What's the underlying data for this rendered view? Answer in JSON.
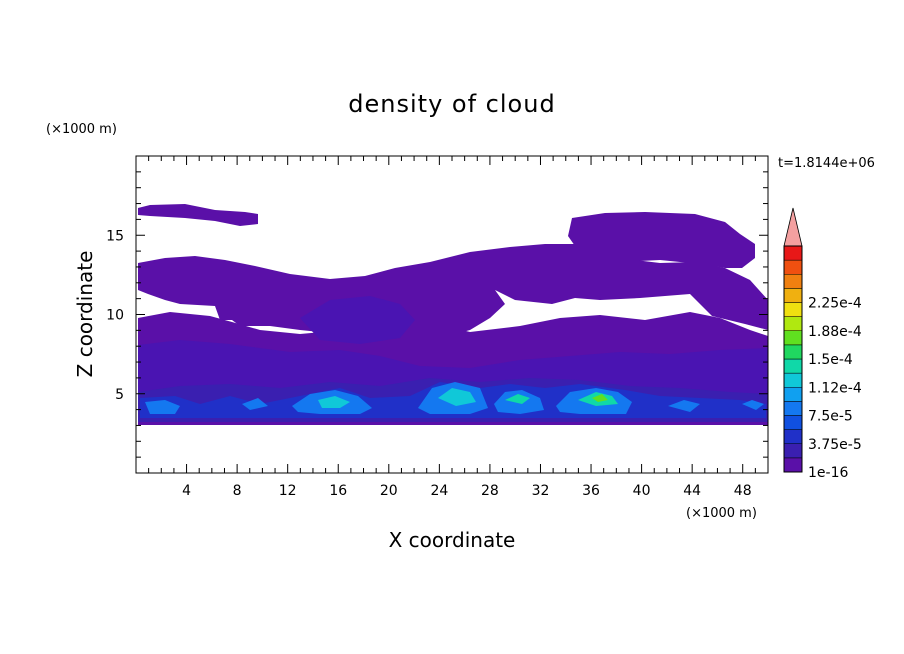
{
  "chart_data": {
    "type": "heatmap",
    "title": "density of cloud",
    "xlabel": "X coordinate",
    "ylabel": "Z coordinate",
    "x_unit": "(×1000 m)",
    "y_unit": "(×1000 m)",
    "time_label": "t=1.8144e+06",
    "xlim": [
      0,
      50
    ],
    "ylim": [
      0,
      20
    ],
    "x_ticks": [
      4,
      8,
      12,
      16,
      20,
      24,
      28,
      32,
      36,
      40,
      44,
      48
    ],
    "y_ticks": [
      5,
      10,
      15
    ],
    "colorbar": {
      "levels": [
        "1e-16",
        "3.75e-5",
        "7.5e-5",
        "1.12e-4",
        "1.5e-4",
        "1.88e-4",
        "2.25e-4"
      ],
      "colors": [
        "#5a10a8",
        "#3a1fb0",
        "#2030c8",
        "#1050e0",
        "#1478f0",
        "#10a0f0",
        "#10c8d8",
        "#10d8a8",
        "#20d860",
        "#60e020",
        "#b0e810",
        "#f0e010",
        "#f0b010",
        "#f08010",
        "#f05010",
        "#e81818"
      ],
      "extend_color": "#f4a0a0"
    },
    "regions": [
      {
        "name": "upper-layer-left",
        "level": 0,
        "x": [
          0,
          10
        ],
        "z": [
          15.8,
          16.8
        ]
      },
      {
        "name": "mid-layer",
        "level": 0,
        "x": [
          0,
          50
        ],
        "z": [
          5,
          13.5
        ]
      },
      {
        "name": "upper-layer-right",
        "level": 0,
        "x": [
          34,
          49
        ],
        "z": [
          13,
          16.3
        ]
      },
      {
        "name": "cloud-base",
        "level": 2,
        "x": [
          0,
          50
        ],
        "z": [
          3.3,
          5.5
        ]
      },
      {
        "name": "cell-15",
        "level": 5,
        "x": [
          13,
          18
        ],
        "z": [
          3.8,
          5
        ]
      },
      {
        "name": "cell-25",
        "level": 6,
        "x": [
          22,
          27
        ],
        "z": [
          3.8,
          5
        ]
      },
      {
        "name": "cell-30",
        "level": 6,
        "x": [
          28,
          32
        ],
        "z": [
          3.8,
          5
        ]
      },
      {
        "name": "cell-36",
        "level": 8,
        "x": [
          34,
          39
        ],
        "z": [
          3.8,
          5.2
        ]
      }
    ]
  }
}
